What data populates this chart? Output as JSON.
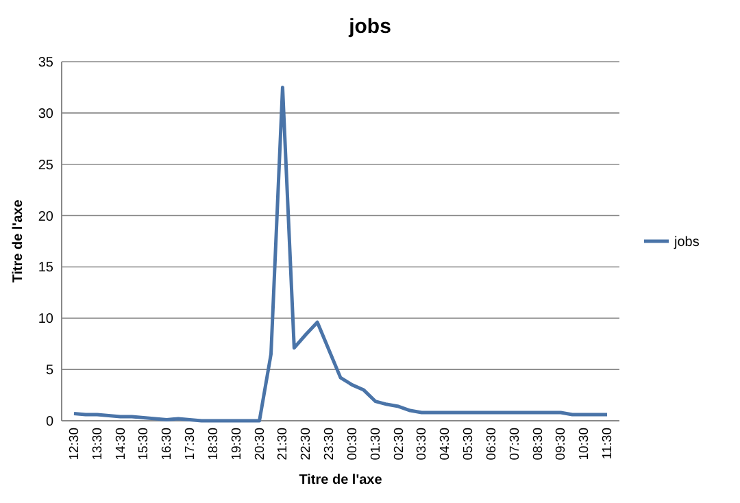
{
  "chart_data": {
    "type": "line",
    "title": "jobs",
    "xlabel": "Titre de l'axe",
    "ylabel": "Titre de l'axe",
    "categories": [
      "12:30",
      null,
      "13:30",
      null,
      "14:30",
      null,
      "15:30",
      null,
      "16:30",
      null,
      "17:30",
      null,
      "18:30",
      null,
      "19:30",
      null,
      "20:30",
      null,
      "21:30",
      null,
      "22:30",
      null,
      "23:30",
      null,
      "00:30",
      null,
      "01:30",
      null,
      "02:30",
      null,
      "03:30",
      null,
      "04:30",
      null,
      "05:30",
      null,
      "06:30",
      null,
      "07:30",
      null,
      "08:30",
      null,
      "09:30",
      null,
      "10:30",
      null,
      "11:30"
    ],
    "series": [
      {
        "name": "jobs",
        "color": "#4a74a8",
        "values": [
          0.7,
          0.6,
          0.6,
          0.5,
          0.4,
          0.4,
          0.3,
          0.2,
          0.1,
          0.2,
          0.1,
          0,
          0,
          0,
          0,
          0,
          0,
          6.5,
          32.5,
          7.1,
          8.4,
          9.6,
          6.9,
          4.2,
          3.5,
          3.0,
          1.9,
          1.6,
          1.4,
          1.0,
          0.8,
          0.8,
          0.8,
          0.8,
          0.8,
          0.8,
          0.8,
          0.8,
          0.8,
          0.8,
          0.8,
          0.8,
          0.8,
          0.6,
          0.6,
          0.6,
          0.6
        ]
      }
    ],
    "ylim": [
      0,
      35
    ],
    "yticks": [
      0,
      5,
      10,
      15,
      20,
      25,
      30,
      35
    ],
    "grid": "y",
    "legend": "right",
    "marker": "none",
    "line_style": "solid"
  }
}
